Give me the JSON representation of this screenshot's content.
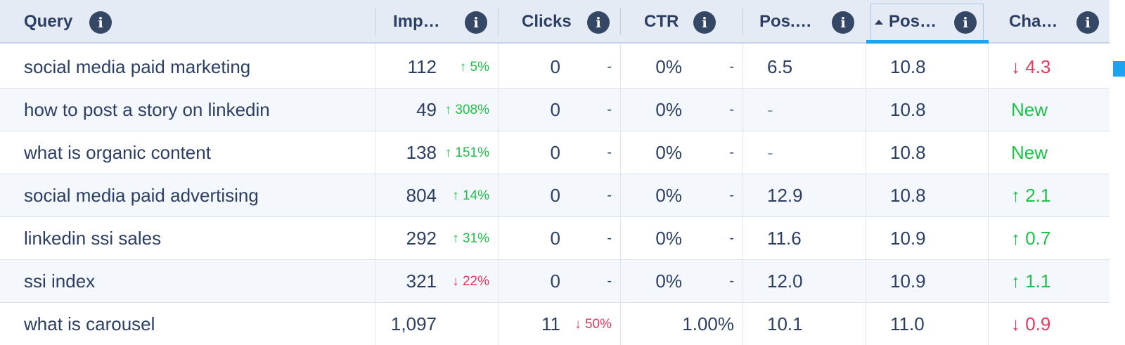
{
  "columns": [
    {
      "key": "query",
      "label": "Query"
    },
    {
      "key": "impressions",
      "label": "Imp…"
    },
    {
      "key": "clicks",
      "label": "Clicks"
    },
    {
      "key": "ctr",
      "label": "CTR"
    },
    {
      "key": "pos_prev",
      "label": "Pos.…"
    },
    {
      "key": "pos",
      "label": "Pos…",
      "sorted": "ascending"
    },
    {
      "key": "change",
      "label": "Cha…"
    }
  ],
  "info_icon_glyph": "i",
  "colors": {
    "header_bg": "#e4ebf5",
    "accent": "#1aa3ee",
    "up": "#1fc14a",
    "down": "#e5385d",
    "text": "#2c3f63"
  },
  "rows": [
    {
      "query": "social media paid marketing",
      "impressions": "112",
      "impressions_delta": "↑ 5%",
      "impressions_dir": "up",
      "clicks": "0",
      "clicks_delta": "-",
      "ctr": "0%",
      "ctr_delta": "-",
      "pos_prev": "6.5",
      "pos": "10.8",
      "change": "↓ 4.3",
      "change_dir": "down"
    },
    {
      "query": "how to post a story on linkedin",
      "impressions": "49",
      "impressions_delta": "↑ 308%",
      "impressions_dir": "up",
      "clicks": "0",
      "clicks_delta": "-",
      "ctr": "0%",
      "ctr_delta": "-",
      "pos_prev": "-",
      "pos": "10.8",
      "change": "New",
      "change_dir": "new"
    },
    {
      "query": "what is organic content",
      "impressions": "138",
      "impressions_delta": "↑ 151%",
      "impressions_dir": "up",
      "clicks": "0",
      "clicks_delta": "-",
      "ctr": "0%",
      "ctr_delta": "-",
      "pos_prev": "-",
      "pos": "10.8",
      "change": "New",
      "change_dir": "new"
    },
    {
      "query": "social media paid advertising",
      "impressions": "804",
      "impressions_delta": "↑ 14%",
      "impressions_dir": "up",
      "clicks": "0",
      "clicks_delta": "-",
      "ctr": "0%",
      "ctr_delta": "-",
      "pos_prev": "12.9",
      "pos": "10.8",
      "change": "↑ 2.1",
      "change_dir": "up"
    },
    {
      "query": "linkedin ssi sales",
      "impressions": "292",
      "impressions_delta": "↑ 31%",
      "impressions_dir": "up",
      "clicks": "0",
      "clicks_delta": "-",
      "ctr": "0%",
      "ctr_delta": "-",
      "pos_prev": "11.6",
      "pos": "10.9",
      "change": "↑ 0.7",
      "change_dir": "up"
    },
    {
      "query": "ssi index",
      "impressions": "321",
      "impressions_delta": "↓ 22%",
      "impressions_dir": "down",
      "clicks": "0",
      "clicks_delta": "-",
      "ctr": "0%",
      "ctr_delta": "-",
      "pos_prev": "12.0",
      "pos": "10.9",
      "change": "↑ 1.1",
      "change_dir": "up"
    },
    {
      "query": "what is carousel",
      "impressions": "1,097",
      "impressions_delta": "",
      "impressions_dir": "",
      "clicks": "11",
      "clicks_delta": "↓ 50%",
      "clicks_dir": "down",
      "ctr": "1.00%",
      "ctr_delta": "",
      "pos_prev": "10.1",
      "pos": "11.0",
      "change": "↓ 0.9",
      "change_dir": "down"
    }
  ]
}
